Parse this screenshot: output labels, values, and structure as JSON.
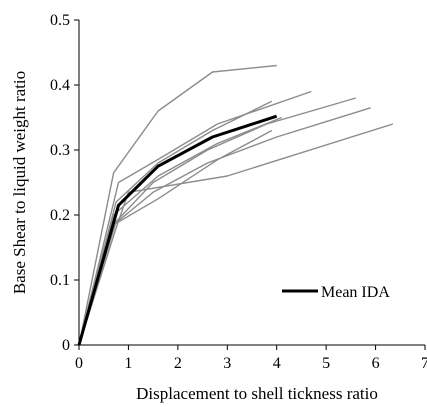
{
  "chart_data": {
    "type": "line",
    "title": "",
    "xlabel": "Displacement to shell tickness ratio",
    "ylabel": "Base Shear to liquid weight ratio",
    "xlim": [
      0,
      7
    ],
    "ylim": [
      0,
      0.5
    ],
    "xticks": [
      "0",
      "1",
      "2",
      "3",
      "4",
      "5",
      "6",
      "7"
    ],
    "yticks": [
      "0",
      "0.1",
      "0.2",
      "0.3",
      "0.4",
      "0.5"
    ],
    "grid": false,
    "legend_position": "bottom-right",
    "series": [
      {
        "role": "record",
        "color": "#8c8c8c",
        "x": [
          0,
          0.7,
          1.6,
          2.7,
          4.0
        ],
        "y": [
          0,
          0.265,
          0.36,
          0.42,
          0.43
        ]
      },
      {
        "role": "record",
        "color": "#8c8c8c",
        "x": [
          0,
          0.8,
          1.7,
          2.8,
          4.7
        ],
        "y": [
          0,
          0.25,
          0.29,
          0.34,
          0.39
        ]
      },
      {
        "role": "record",
        "color": "#8c8c8c",
        "x": [
          0,
          0.75,
          1.6,
          2.7,
          3.9
        ],
        "y": [
          0,
          0.22,
          0.28,
          0.33,
          0.375
        ]
      },
      {
        "role": "record",
        "color": "#8c8c8c",
        "x": [
          0,
          0.7,
          1.6,
          2.8,
          4.1
        ],
        "y": [
          0,
          0.2,
          0.26,
          0.31,
          0.35
        ]
      },
      {
        "role": "record",
        "color": "#8c8c8c",
        "x": [
          0,
          0.75,
          1.5,
          2.6,
          3.8,
          5.6
        ],
        "y": [
          0,
          0.19,
          0.25,
          0.3,
          0.34,
          0.38
        ]
      },
      {
        "role": "record",
        "color": "#8c8c8c",
        "x": [
          0,
          0.7,
          1.5,
          2.6,
          4.0,
          5.9
        ],
        "y": [
          0,
          0.185,
          0.235,
          0.28,
          0.32,
          0.365
        ]
      },
      {
        "role": "record",
        "color": "#8c8c8c",
        "x": [
          0,
          0.7,
          1.6,
          2.8,
          3.9
        ],
        "y": [
          0,
          0.185,
          0.225,
          0.285,
          0.33
        ]
      },
      {
        "role": "record",
        "color": "#8c8c8c",
        "x": [
          0,
          0.75,
          1.0,
          3.0,
          6.35
        ],
        "y": [
          0,
          0.18,
          0.235,
          0.26,
          0.34
        ]
      },
      {
        "role": "mean",
        "name": "Mean IDA",
        "color": "#000000",
        "x": [
          0,
          0.8,
          1.6,
          2.7,
          4.0
        ],
        "y": [
          0,
          0.215,
          0.275,
          0.32,
          0.352
        ]
      }
    ]
  }
}
